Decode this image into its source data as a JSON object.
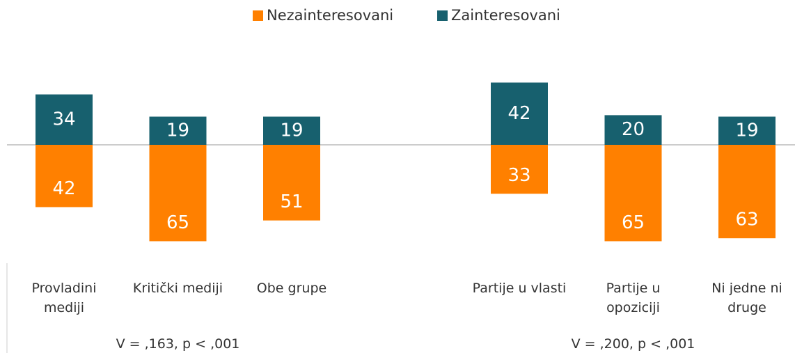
{
  "chart_data": {
    "type": "diverging-bar",
    "categories": [
      "Provladini mediji",
      "Kritički mediji",
      "Obe grupe",
      null,
      "Partije u vlasti",
      "Partije u opoziciji",
      "Ni jedne ni druge"
    ],
    "series": [
      {
        "name": "Nezainteresovani",
        "color": "#ff8000",
        "direction": "down",
        "values": [
          42,
          65,
          51,
          null,
          33,
          65,
          63
        ]
      },
      {
        "name": "Zainteresovani",
        "color": "#17606e",
        "direction": "up",
        "values": [
          34,
          19,
          19,
          null,
          42,
          20,
          19
        ]
      }
    ],
    "annotations": [
      "V = ,163, p < ,001",
      "V = ,200, p < ,001"
    ]
  }
}
